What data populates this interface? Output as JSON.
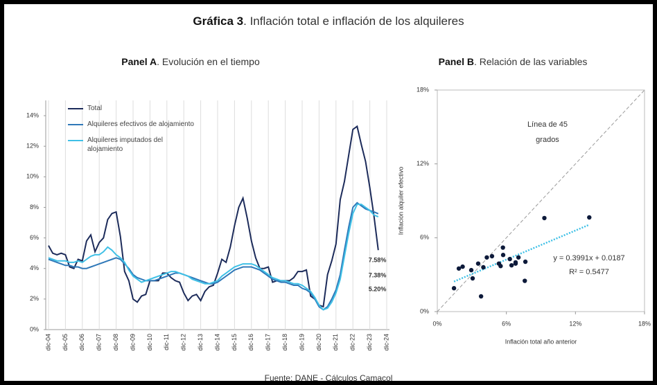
{
  "title": {
    "bold": "Gráfica 3",
    "rest": ". Inflación total e inflación de los alquileres"
  },
  "source": "Fuente: DANE - Cálculos Camacol",
  "chart_data": [
    {
      "type": "line",
      "title": {
        "bold": "Panel A",
        "rest": ". Evolución en el tiempo"
      },
      "categories": [
        "dic-04",
        null,
        null,
        null,
        "dic-05",
        null,
        null,
        null,
        "dic-06",
        null,
        null,
        null,
        "dic-07",
        null,
        null,
        null,
        "dic-08",
        null,
        null,
        null,
        "dic-09",
        null,
        null,
        null,
        "dic-10",
        null,
        null,
        null,
        "dic-11",
        null,
        null,
        null,
        "dic-12",
        null,
        null,
        null,
        "dic-13",
        null,
        null,
        null,
        "dic-14",
        null,
        null,
        null,
        "dic-15",
        null,
        null,
        null,
        "dic-16",
        null,
        null,
        null,
        "dic-17",
        null,
        null,
        null,
        "dic-18",
        null,
        null,
        null,
        "dic-19",
        null,
        null,
        null,
        "dic-20",
        null,
        null,
        null,
        "dic-21",
        null,
        null,
        null,
        "dic-22",
        null,
        null,
        null,
        "dic-23",
        null,
        null,
        null,
        "dic-24"
      ],
      "series": [
        {
          "name": "Total",
          "color": "#1c2b5a",
          "values": [
            5.5,
            5.0,
            4.9,
            5.0,
            4.9,
            4.1,
            4.0,
            4.6,
            4.5,
            5.8,
            6.2,
            5.1,
            5.7,
            6.0,
            7.2,
            7.6,
            7.7,
            6.1,
            3.8,
            3.2,
            2.0,
            1.8,
            2.2,
            2.3,
            3.2,
            3.2,
            3.2,
            3.7,
            3.7,
            3.4,
            3.2,
            3.1,
            2.4,
            1.9,
            2.2,
            2.3,
            1.9,
            2.5,
            2.8,
            2.9,
            3.7,
            4.6,
            4.4,
            5.4,
            6.8,
            8.0,
            8.6,
            7.3,
            5.8,
            4.7,
            4.0,
            4.0,
            4.1,
            3.1,
            3.2,
            3.2,
            3.2,
            3.2,
            3.4,
            3.8,
            3.8,
            3.9,
            2.2,
            2.0,
            1.6,
            1.5,
            3.6,
            4.5,
            5.6,
            8.5,
            9.7,
            11.4,
            13.1,
            13.3,
            12.1,
            11.0,
            9.3,
            7.4,
            5.2,
            null,
            null
          ],
          "value_labels": [
            null,
            null,
            null,
            null,
            null,
            null,
            null,
            null,
            null,
            null,
            null,
            null,
            null,
            null,
            null,
            null,
            null,
            null,
            null,
            null,
            null,
            null,
            null,
            null,
            null,
            null,
            null,
            null,
            null,
            null,
            null,
            null,
            null,
            null,
            null,
            null,
            null,
            null,
            null,
            null,
            null,
            null,
            null,
            null,
            null,
            null,
            null,
            null,
            null,
            null,
            null,
            null,
            null,
            null,
            null,
            null,
            null,
            null,
            null,
            null,
            null,
            null,
            null,
            null,
            null,
            null,
            null,
            null,
            null,
            null,
            null,
            null,
            null,
            null,
            null,
            null,
            null,
            null,
            "5.20%",
            null,
            null
          ]
        },
        {
          "name": "Alquileres efectivos de alojamiento",
          "color": "#2f78b8",
          "values": [
            4.6,
            4.5,
            4.4,
            4.3,
            4.2,
            4.2,
            4.1,
            4.1,
            4.0,
            4.0,
            4.1,
            4.2,
            4.3,
            4.4,
            4.5,
            4.6,
            4.7,
            4.6,
            4.3,
            4.0,
            3.6,
            3.4,
            3.3,
            3.2,
            3.2,
            3.2,
            3.3,
            3.4,
            3.5,
            3.6,
            3.7,
            3.7,
            3.6,
            3.5,
            3.4,
            3.3,
            3.2,
            3.1,
            3.0,
            3.0,
            3.1,
            3.3,
            3.5,
            3.7,
            3.9,
            4.0,
            4.1,
            4.1,
            4.1,
            4.0,
            3.9,
            3.7,
            3.5,
            3.3,
            3.2,
            3.1,
            3.1,
            3.0,
            2.9,
            2.9,
            2.7,
            2.6,
            2.4,
            2.0,
            1.5,
            1.3,
            1.5,
            2.0,
            2.6,
            3.6,
            5.2,
            6.7,
            8.0,
            8.3,
            8.1,
            7.9,
            7.8,
            7.7,
            7.58,
            null,
            null
          ],
          "value_labels": [
            null,
            null,
            null,
            null,
            null,
            null,
            null,
            null,
            null,
            null,
            null,
            null,
            null,
            null,
            null,
            null,
            null,
            null,
            null,
            null,
            null,
            null,
            null,
            null,
            null,
            null,
            null,
            null,
            null,
            null,
            null,
            null,
            null,
            null,
            null,
            null,
            null,
            null,
            null,
            null,
            null,
            null,
            null,
            null,
            null,
            null,
            null,
            null,
            null,
            null,
            null,
            null,
            null,
            null,
            null,
            null,
            null,
            null,
            null,
            null,
            null,
            null,
            null,
            null,
            null,
            null,
            null,
            null,
            null,
            null,
            null,
            null,
            null,
            null,
            null,
            null,
            null,
            null,
            "7.58%",
            null,
            null
          ]
        },
        {
          "name": "Alquileres imputados del alojamiento",
          "color": "#3fc0e6",
          "values": [
            4.7,
            4.6,
            4.5,
            4.5,
            4.5,
            4.4,
            4.4,
            4.5,
            4.4,
            4.6,
            4.8,
            4.9,
            4.9,
            5.1,
            5.4,
            5.2,
            4.9,
            4.7,
            4.4,
            3.9,
            3.5,
            3.3,
            3.1,
            3.2,
            3.3,
            3.4,
            3.5,
            3.6,
            3.7,
            3.8,
            3.8,
            3.7,
            3.6,
            3.5,
            3.3,
            3.2,
            3.1,
            3.0,
            3.0,
            3.1,
            3.2,
            3.5,
            3.7,
            3.9,
            4.1,
            4.2,
            4.3,
            4.3,
            4.3,
            4.2,
            4.0,
            3.8,
            3.6,
            3.4,
            3.3,
            3.2,
            3.2,
            3.1,
            3.0,
            3.0,
            2.9,
            2.7,
            2.5,
            2.1,
            1.6,
            1.3,
            1.4,
            1.8,
            2.4,
            3.3,
            4.8,
            6.3,
            7.6,
            8.2,
            8.2,
            8.0,
            7.8,
            7.5,
            7.38,
            null,
            null
          ],
          "value_labels": [
            null,
            null,
            null,
            null,
            null,
            null,
            null,
            null,
            null,
            null,
            null,
            null,
            null,
            null,
            null,
            null,
            null,
            null,
            null,
            null,
            null,
            null,
            null,
            null,
            null,
            null,
            null,
            null,
            null,
            null,
            null,
            null,
            null,
            null,
            null,
            null,
            null,
            null,
            null,
            null,
            null,
            null,
            null,
            null,
            null,
            null,
            null,
            null,
            null,
            null,
            null,
            null,
            null,
            null,
            null,
            null,
            null,
            null,
            null,
            null,
            null,
            null,
            null,
            null,
            null,
            null,
            null,
            null,
            null,
            null,
            null,
            null,
            null,
            null,
            null,
            null,
            null,
            null,
            "7.38%",
            null,
            null
          ]
        }
      ],
      "ylim": [
        0,
        15
      ],
      "yticks": [
        {
          "value": 0,
          "label": "0%"
        },
        {
          "value": 2,
          "label": "2%"
        },
        {
          "value": 4,
          "label": "4%"
        },
        {
          "value": 6,
          "label": "6%"
        },
        {
          "value": 8,
          "label": "8%"
        },
        {
          "value": 10,
          "label": "10%"
        },
        {
          "value": 12,
          "label": "12%"
        },
        {
          "value": 14,
          "label": "14%"
        }
      ],
      "grid": "x",
      "legend": "top-left"
    },
    {
      "type": "scatter",
      "title": {
        "bold": "Panel B",
        "rest": ". Relación de las variables"
      },
      "x_label": "Inflación total año anterior",
      "y_label": "Inflación alquiler efectivo",
      "color": "#0d1a3a",
      "x": [
        1.45,
        1.87,
        2.2,
        2.95,
        3.07,
        3.55,
        3.8,
        4.0,
        4.3,
        4.75,
        5.35,
        5.5,
        5.7,
        5.72,
        6.3,
        6.45,
        6.8,
        7.05,
        6.8,
        7.65,
        7.6,
        9.3,
        13.2
      ],
      "values": [
        1.9,
        3.5,
        3.65,
        3.37,
        2.7,
        3.9,
        1.24,
        3.6,
        4.4,
        4.5,
        3.9,
        3.7,
        5.2,
        4.6,
        4.27,
        3.76,
        4.0,
        4.4,
        3.9,
        4.05,
        2.5,
        7.6,
        7.65
      ],
      "xlim": [
        0,
        18
      ],
      "ylim": [
        0,
        18
      ],
      "xticks": [
        {
          "value": 0,
          "label": "0%"
        },
        {
          "value": 6,
          "label": "6%"
        },
        {
          "value": 12,
          "label": "12%"
        },
        {
          "value": 18,
          "label": "18%"
        }
      ],
      "yticks": [
        {
          "value": 0,
          "label": "0%"
        },
        {
          "value": 6,
          "label": "6%"
        },
        {
          "value": 12,
          "label": "12%"
        },
        {
          "value": 18,
          "label": "18%"
        }
      ],
      "reference_line_label": [
        "Línea de 45",
        "grados"
      ],
      "reference_line_color": "#9a9a9a",
      "trendline_labels": [
        "y = 0.3991x + 0.0187",
        "R² = 0.5477"
      ],
      "trendline_color": "#3fc0e6",
      "grid": false
    }
  ]
}
